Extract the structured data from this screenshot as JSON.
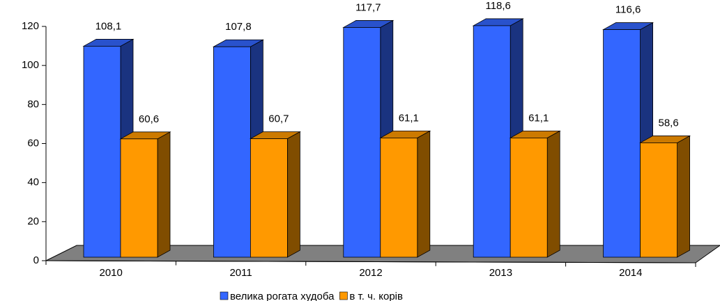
{
  "chart_data": {
    "type": "bar3d",
    "categories": [
      "2010",
      "2011",
      "2012",
      "2013",
      "2014"
    ],
    "series": [
      {
        "name": "велика рогата худоба",
        "color": "#3366ff",
        "values": [
          108.1,
          107.8,
          117.7,
          118.6,
          116.6
        ],
        "value_labels": [
          "108,1",
          "107,8",
          "117,7",
          "118,6",
          "116,6"
        ]
      },
      {
        "name": "в т. ч. корів",
        "color": "#ff9900",
        "values": [
          60.6,
          60.7,
          61.1,
          61.1,
          58.6
        ],
        "value_labels": [
          "60,6",
          "60,7",
          "61,1",
          "61,1",
          "58,6"
        ]
      }
    ],
    "ylim": [
      0,
      120
    ],
    "yticks": [
      0,
      20,
      40,
      60,
      80,
      100,
      120
    ],
    "legend": "bottom"
  }
}
